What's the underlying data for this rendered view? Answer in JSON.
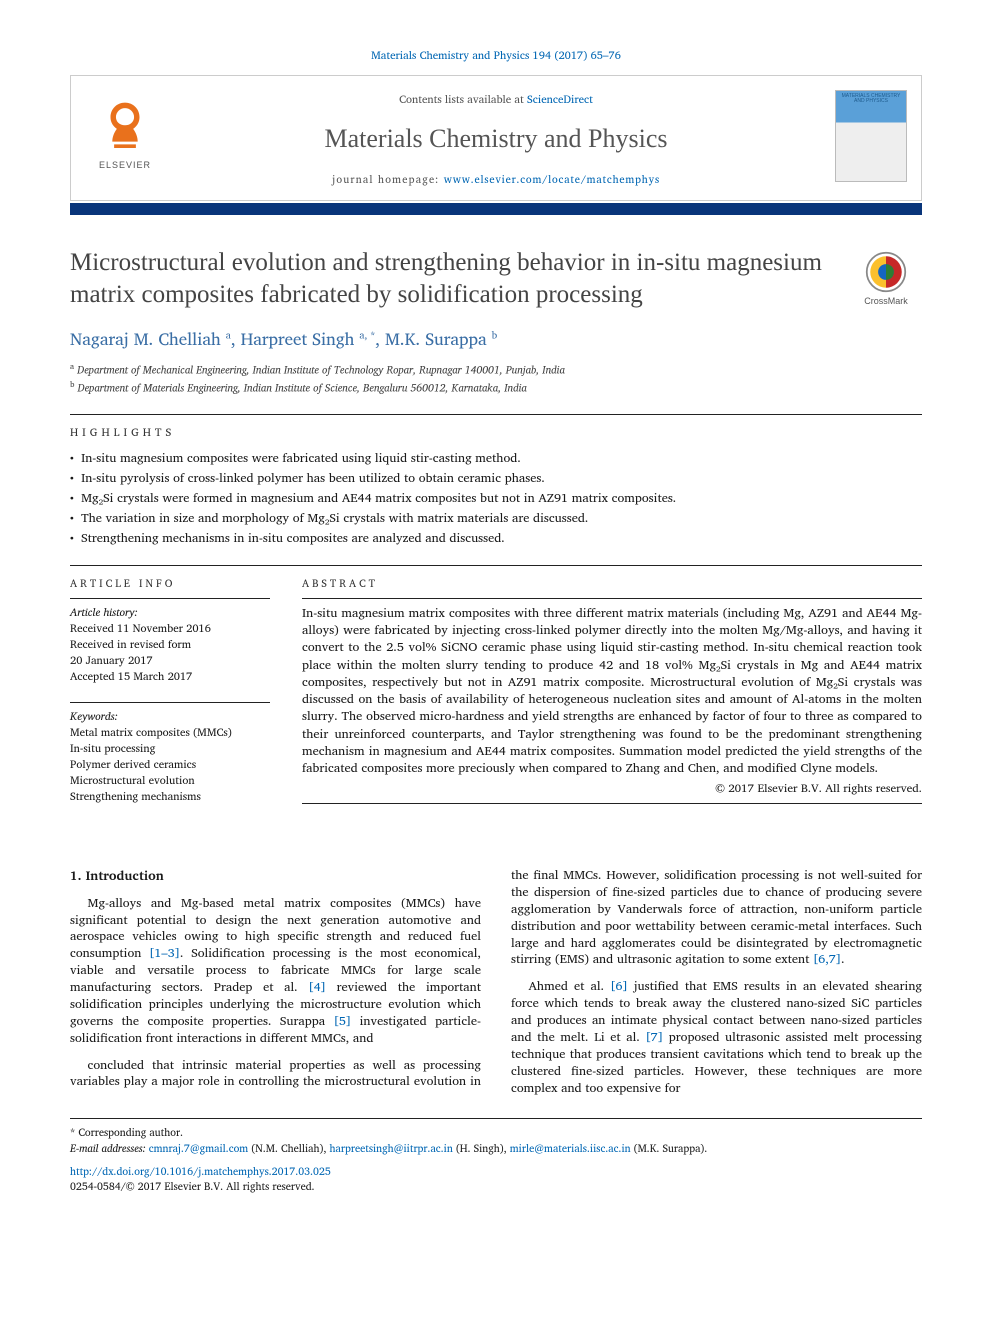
{
  "citation": "Materials Chemistry and Physics 194 (2017) 65–76",
  "masthead": {
    "contents_prefix": "Contents lists available at ",
    "contents_link": "ScienceDirect",
    "journal_name": "Materials Chemistry and Physics",
    "homepage_prefix": "journal homepage: ",
    "homepage_url": "www.elsevier.com/locate/matchemphys",
    "publisher_brand": "ELSEVIER",
    "cover_text": "MATERIALS CHEMISTRY AND PHYSICS"
  },
  "colors": {
    "link": "#0066b3",
    "bar": "#09357a",
    "author": "#3a6ea5",
    "elsevier_orange": "#e9711c"
  },
  "title": "Microstructural evolution and strengthening behavior in in-situ magnesium matrix composites fabricated by solidification processing",
  "crossmark_label": "CrossMark",
  "authors_html": "Nagaraj M. Chelliah <sup>a</sup>, Harpreet Singh <sup>a, *</sup>, M.K. Surappa <sup>b</sup>",
  "affiliations": [
    {
      "marker": "a",
      "text": "Department of Mechanical Engineering, Indian Institute of Technology Ropar, Rupnagar 140001, Punjab, India"
    },
    {
      "marker": "b",
      "text": "Department of Materials Engineering, Indian Institute of Science, Bengaluru 560012, Karnataka, India"
    }
  ],
  "highlights_heading": "HIGHLIGHTS",
  "highlights": [
    "In-situ magnesium composites were fabricated using liquid stir-casting method.",
    "In-situ pyrolysis of cross-linked polymer has been utilized to obtain ceramic phases.",
    "Mg₂Si crystals were formed in magnesium and AE44 matrix composites but not in AZ91 matrix composites.",
    "The variation in size and morphology of Mg₂Si crystals with matrix materials are discussed.",
    "Strengthening mechanisms in in-situ composites are analyzed and discussed."
  ],
  "info_heading": "ARTICLE INFO",
  "abstract_heading": "ABSTRACT",
  "history_label": "Article history:",
  "history_lines": [
    "Received 11 November 2016",
    "Received in revised form",
    "20 January 2017",
    "Accepted 15 March 2017"
  ],
  "keywords_label": "Keywords:",
  "keywords": [
    "Metal matrix composites (MMCs)",
    "In-situ processing",
    "Polymer derived ceramics",
    "Microstructural evolution",
    "Strengthening mechanisms"
  ],
  "abstract": "In-situ magnesium matrix composites with three different matrix materials (including Mg, AZ91 and AE44 Mg-alloys) were fabricated by injecting cross-linked polymer directly into the molten Mg/Mg-alloys, and having it convert to the 2.5 vol% SiCNO ceramic phase using liquid stir-casting method. In-situ chemical reaction took place within the molten slurry tending to produce 42 and 18 vol% Mg₂Si crystals in Mg and AE44 matrix composites, respectively but not in AZ91 matrix composite. Microstructural evolution of Mg₂Si crystals was discussed on the basis of availability of heterogeneous nucleation sites and amount of Al-atoms in the molten slurry. The observed micro-hardness and yield strengths are enhanced by factor of four to three as compared to their unreinforced counterparts, and Taylor strengthening was found to be the predominant strengthening mechanism in magnesium and AE44 matrix composites. Summation model predicted the yield strengths of the fabricated composites more preciously when compared to Zhang and Chen, and modified Clyne models.",
  "abstract_copyright": "© 2017 Elsevier B.V. All rights reserved.",
  "intro_heading": "1. Introduction",
  "intro_p1_pre": "Mg-alloys and Mg-based metal matrix composites (MMCs) have significant potential to design the next generation automotive and aerospace vehicles owing to high specific strength and reduced fuel consumption ",
  "intro_p1_ref1": "[1–3]",
  "intro_p1_mid": ". Solidification processing is the most economical, viable and versatile process to fabricate MMCs for large scale manufacturing sectors. Pradep et al. ",
  "intro_p1_ref2": "[4]",
  "intro_p1_mid2": " reviewed the important solidification principles underlying the microstructure evolution which governs the composite properties. Surappa ",
  "intro_p1_ref3": "[5]",
  "intro_p1_post": " investigated particle-solidification front interactions in different MMCs, and",
  "intro_p2_pre": "concluded that intrinsic material properties as well as processing variables play a major role in controlling the microstructural evolution in the final MMCs. However, solidification processing is not well-suited for the dispersion of fine-sized particles due to chance of producing severe agglomeration by Vanderwals force of attraction, non-uniform particle distribution and poor wettability between ceramic-metal interfaces. Such large and hard agglomerates could be disintegrated by electromagnetic stirring (EMS) and ultrasonic agitation to some extent ",
  "intro_p2_ref1": "[6,7]",
  "intro_p2_post": ".",
  "intro_p3_pre": "Ahmed et al. ",
  "intro_p3_ref1": "[6]",
  "intro_p3_mid": " justified that EMS results in an elevated shearing force which tends to break away the clustered nano-sized SiC particles and produces an intimate physical contact between nano-sized particles and the melt. Li et al. ",
  "intro_p3_ref2": "[7]",
  "intro_p3_post": " proposed ultrasonic assisted melt processing technique that produces transient cavitations which tend to break up the clustered fine-sized particles. However, these techniques are more complex and too expensive for",
  "footer": {
    "corr_label": "* Corresponding author.",
    "email_label": "E-mail addresses:",
    "email1": "cmnraj.7@gmail.com",
    "email1_who": " (N.M. Chelliah), ",
    "email2": "harpreetsingh@iitrpr.ac.in",
    "email2_who": " (H. Singh), ",
    "email3": "mirle@materials.iisc.ac.in",
    "email3_who": " (M.K. Surappa).",
    "doi": "http://dx.doi.org/10.1016/j.matchemphys.2017.03.025",
    "copyright": "0254-0584/© 2017 Elsevier B.V. All rights reserved."
  }
}
